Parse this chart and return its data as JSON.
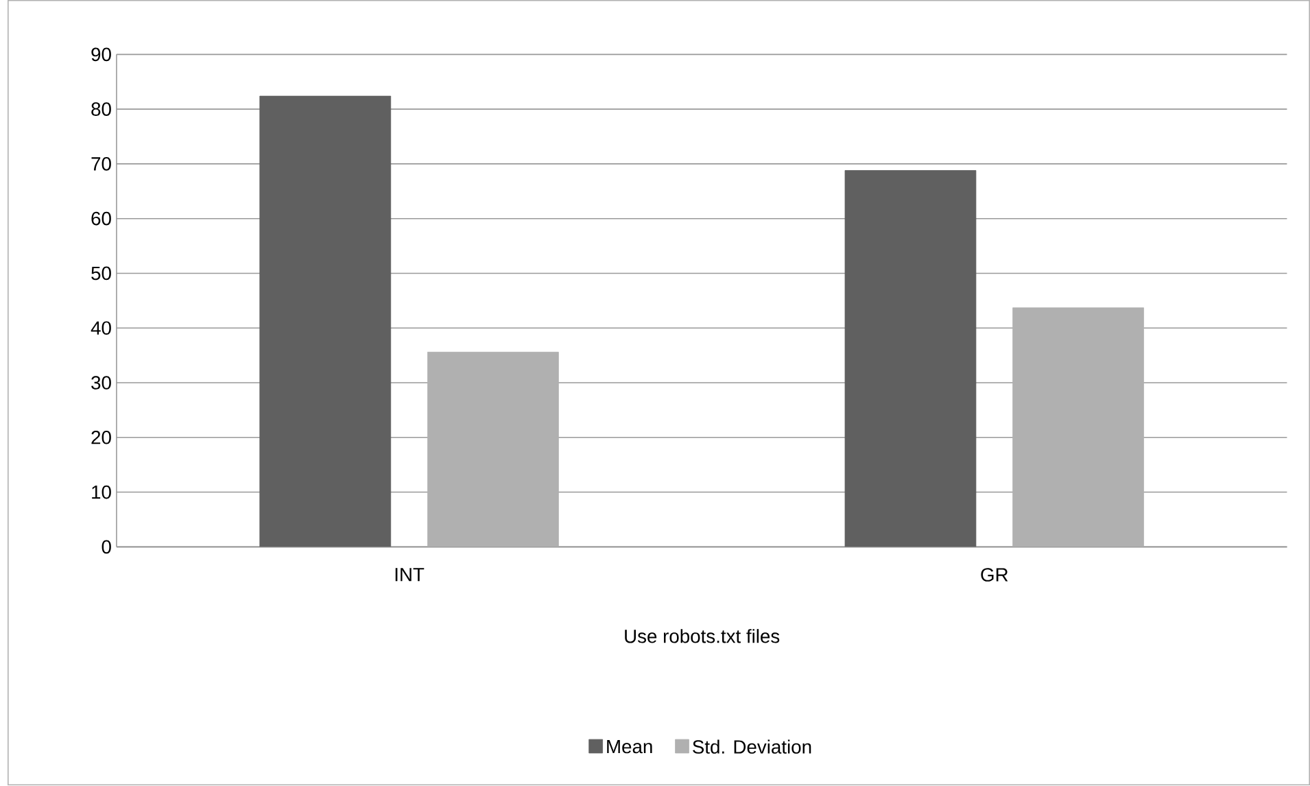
{
  "chart_data": {
    "type": "bar",
    "categories": [
      "INT",
      "GR"
    ],
    "xlabel": "Use robots.txt files",
    "series": [
      {
        "name": "Mean",
        "color": "#606060",
        "values": [
          82.4,
          68.8
        ]
      },
      {
        "name": "Std. Deviation",
        "color": "#b0b0b0",
        "values": [
          35.6,
          43.7
        ]
      }
    ],
    "ylim": [
      0,
      90
    ],
    "yticks": [
      0,
      10,
      20,
      30,
      40,
      50,
      60,
      70,
      80,
      90
    ],
    "grid": "y",
    "legend": "bottom"
  }
}
